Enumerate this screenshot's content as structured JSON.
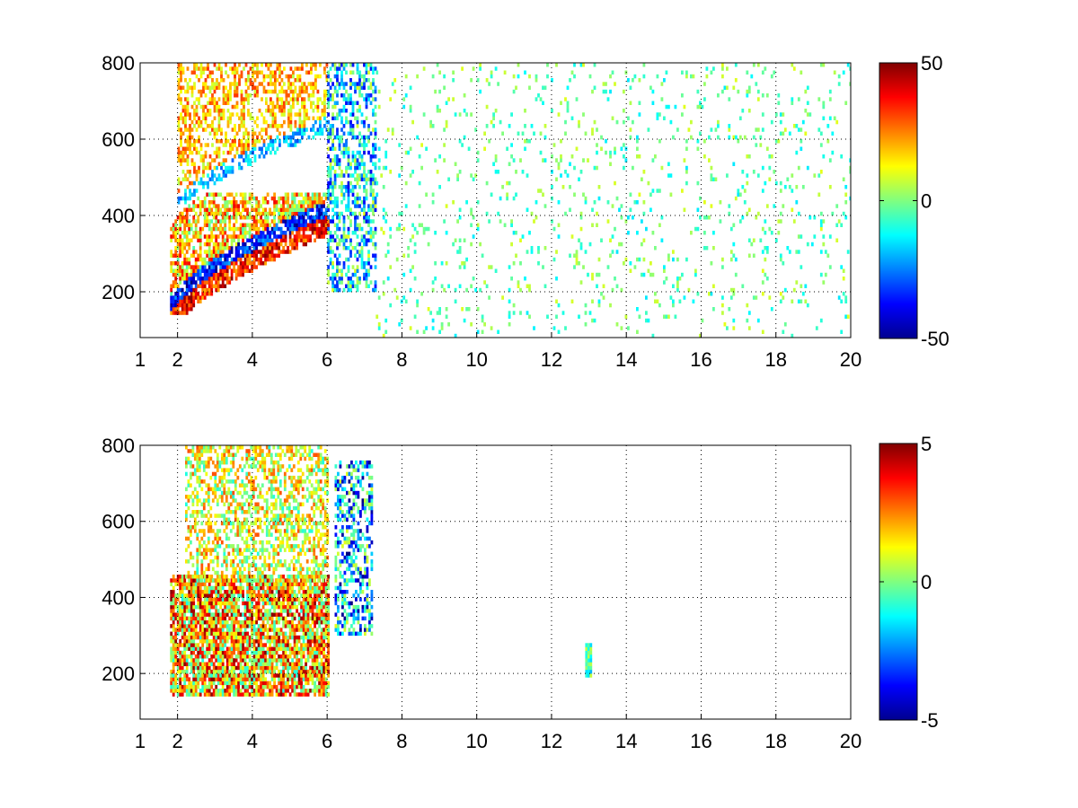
{
  "chart_data": [
    {
      "type": "heatmap",
      "title": "",
      "xlabel": "",
      "ylabel": "",
      "xlim": [
        1,
        20
      ],
      "ylim": [
        80,
        800
      ],
      "xticks": [
        1,
        2,
        4,
        6,
        8,
        10,
        12,
        14,
        16,
        18,
        20
      ],
      "yticks": [
        200,
        400,
        600,
        800
      ],
      "grid": true,
      "grid_style": "dotted",
      "colormap": "jet",
      "colorbar": {
        "limits": [
          -50,
          50
        ],
        "tick_labels": [
          "50",
          "0",
          "-50"
        ],
        "tick_values": [
          50,
          0,
          -50
        ]
      },
      "background_color": "#ffffff",
      "data_description_regions": [
        {
          "x": [
            1.8,
            6.0
          ],
          "y": [
            140,
            460
          ],
          "band": "lower-curved",
          "values_range": [
            -50,
            50
          ],
          "density": "high"
        },
        {
          "x": [
            2.0,
            6.0
          ],
          "y": [
            430,
            800
          ],
          "band": "upper-curved",
          "values_range": [
            -30,
            40
          ],
          "density": "medium"
        },
        {
          "x": [
            6.0,
            7.3
          ],
          "y": [
            200,
            800
          ],
          "values_range": [
            -40,
            10
          ],
          "density": "medium"
        },
        {
          "x": [
            7.3,
            20.0
          ],
          "y": [
            80,
            800
          ],
          "values_range": [
            -15,
            10
          ],
          "density": "sparse"
        }
      ]
    },
    {
      "type": "heatmap",
      "title": "",
      "xlabel": "",
      "ylabel": "",
      "xlim": [
        1,
        20
      ],
      "ylim": [
        80,
        800
      ],
      "xticks": [
        1,
        2,
        4,
        6,
        8,
        10,
        12,
        14,
        16,
        18,
        20
      ],
      "yticks": [
        200,
        400,
        600,
        800
      ],
      "grid": true,
      "grid_style": "dotted",
      "colormap": "jet",
      "colorbar": {
        "limits": [
          -5,
          5
        ],
        "tick_labels": [
          "5",
          "0",
          "-5"
        ],
        "tick_values": [
          5,
          0,
          -5
        ]
      },
      "background_color": "#ffffff",
      "data_description_regions": [
        {
          "x": [
            1.8,
            6.0
          ],
          "y": [
            140,
            460
          ],
          "values_range": [
            -1,
            5
          ],
          "density": "high"
        },
        {
          "x": [
            2.2,
            6.0
          ],
          "y": [
            440,
            800
          ],
          "values_range": [
            -1,
            3
          ],
          "density": "medium"
        },
        {
          "x": [
            6.2,
            7.2
          ],
          "y": [
            300,
            760
          ],
          "values_range": [
            -5,
            1
          ],
          "density": "medium"
        },
        {
          "x": [
            12.9,
            13.05
          ],
          "y": [
            190,
            275
          ],
          "values_range": [
            -2,
            1
          ],
          "density": "small-patch"
        }
      ]
    }
  ]
}
